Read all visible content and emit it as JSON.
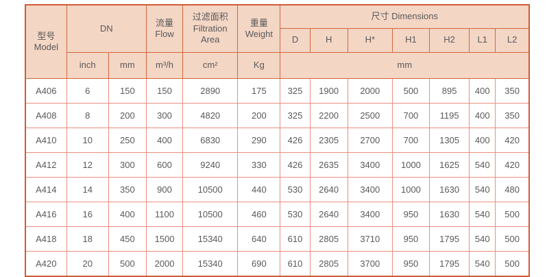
{
  "colors": {
    "header_bg": "#f4d6c5",
    "outer_border": "#cf5b35",
    "header_border": "#d2663c",
    "cell_border": "#ea8d80",
    "text": "#595959"
  },
  "header": {
    "model_lines": [
      "型号",
      "Model"
    ],
    "dn": "DN",
    "flow_lines": [
      "流量",
      "Flow"
    ],
    "filtration_lines": [
      "过滤面积",
      "Filtration",
      "Area"
    ],
    "weight_lines": [
      "重量",
      "Weight"
    ],
    "dimensions": "尺寸 Dimensions",
    "dim_cols": [
      "D",
      "H",
      "H*",
      "H1",
      "H2",
      "L1",
      "L2"
    ],
    "unit_inch": "inch",
    "unit_mm": "mm",
    "unit_flow": "m³/h",
    "unit_area": "cm²",
    "unit_weight": "Kg",
    "unit_dim": "mm"
  },
  "rows": [
    [
      "A406",
      "6",
      "150",
      "150",
      "2890",
      "175",
      "325",
      "1900",
      "2000",
      "500",
      "895",
      "400",
      "350"
    ],
    [
      "A408",
      "8",
      "200",
      "300",
      "4820",
      "200",
      "325",
      "2200",
      "2500",
      "700",
      "1195",
      "400",
      "350"
    ],
    [
      "A410",
      "10",
      "250",
      "400",
      "6830",
      "290",
      "426",
      "2305",
      "2700",
      "700",
      "1305",
      "400",
      "420"
    ],
    [
      "A412",
      "12",
      "300",
      "600",
      "9240",
      "330",
      "426",
      "2635",
      "3400",
      "1000",
      "1625",
      "540",
      "420"
    ],
    [
      "A414",
      "14",
      "350",
      "900",
      "10500",
      "440",
      "530",
      "2640",
      "3400",
      "1000",
      "1630",
      "540",
      "480"
    ],
    [
      "A416",
      "16",
      "400",
      "1100",
      "10500",
      "460",
      "530",
      "2640",
      "3400",
      "950",
      "1630",
      "540",
      "500"
    ],
    [
      "A418",
      "18",
      "450",
      "1500",
      "15340",
      "640",
      "610",
      "2805",
      "3710",
      "950",
      "1795",
      "540",
      "500"
    ],
    [
      "A420",
      "20",
      "500",
      "2000",
      "15340",
      "690",
      "610",
      "2805",
      "3700",
      "950",
      "1795",
      "540",
      "500"
    ]
  ]
}
